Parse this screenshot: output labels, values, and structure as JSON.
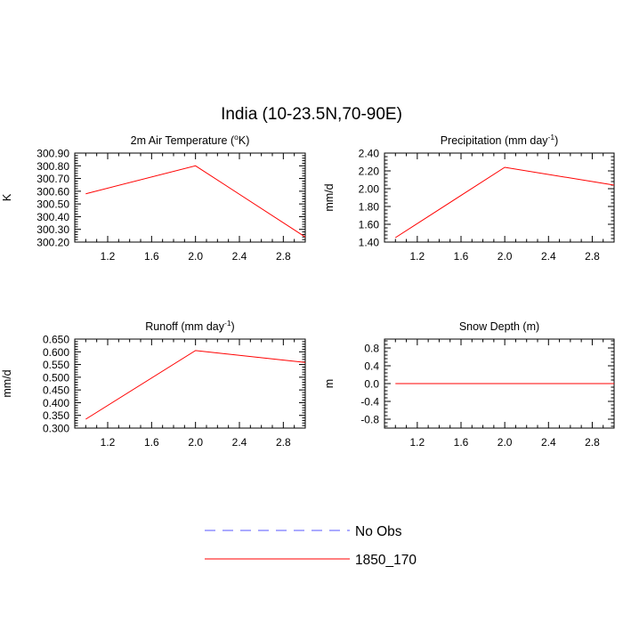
{
  "figure": {
    "title": "India (10-23.5N,70-90E)"
  },
  "legend": [
    {
      "label": "No Obs",
      "color": "#5555ff",
      "dash": true
    },
    {
      "label": "1850_170",
      "color": "#ff0000",
      "dash": false
    }
  ],
  "chart_data": [
    {
      "type": "line",
      "title": "2m Air Temperature (oK)",
      "title_main": "2m Air Temperature (",
      "title_sup": "o",
      "title_after": "K)",
      "xlabel": "",
      "ylabel": "K",
      "xlim": [
        0.9,
        3.0
      ],
      "ylim": [
        300.2,
        300.9
      ],
      "xticks": [
        1.2,
        1.6,
        2.0,
        2.4,
        2.8
      ],
      "xtick_labels": [
        "1.2",
        "1.6",
        "2.0",
        "2.4",
        "2.8"
      ],
      "yticks": [
        300.2,
        300.3,
        300.4,
        300.5,
        300.6,
        300.7,
        300.8,
        300.9
      ],
      "ytick_labels": [
        "300.20",
        "300.30",
        "300.40",
        "300.50",
        "300.60",
        "300.70",
        "300.80",
        "300.90"
      ],
      "series": [
        {
          "name": "1850_170",
          "x": [
            1,
            2,
            3
          ],
          "y": [
            300.58,
            300.8,
            300.24
          ],
          "color": "#ff0000"
        }
      ]
    },
    {
      "type": "line",
      "title": "Precipitation (mm day-1)",
      "title_main": "Precipitation (mm day",
      "title_sup": "-1",
      "title_after": ")",
      "xlabel": "",
      "ylabel": "mm/d",
      "xlim": [
        0.9,
        3.0
      ],
      "ylim": [
        1.4,
        2.4
      ],
      "xticks": [
        1.2,
        1.6,
        2.0,
        2.4,
        2.8
      ],
      "xtick_labels": [
        "1.2",
        "1.6",
        "2.0",
        "2.4",
        "2.8"
      ],
      "yticks": [
        1.4,
        1.6,
        1.8,
        2.0,
        2.2,
        2.4
      ],
      "ytick_labels": [
        "1.40",
        "1.60",
        "1.80",
        "2.00",
        "2.20",
        "2.40"
      ],
      "series": [
        {
          "name": "1850_170",
          "x": [
            1,
            2,
            3
          ],
          "y": [
            1.45,
            2.24,
            2.04
          ],
          "color": "#ff0000"
        }
      ]
    },
    {
      "type": "line",
      "title": "Runoff (mm day-1)",
      "title_main": "Runoff (mm day",
      "title_sup": "-1",
      "title_after": ")",
      "xlabel": "",
      "ylabel": "mm/d",
      "xlim": [
        0.9,
        3.0
      ],
      "ylim": [
        0.3,
        0.65
      ],
      "xticks": [
        1.2,
        1.6,
        2.0,
        2.4,
        2.8
      ],
      "xtick_labels": [
        "1.2",
        "1.6",
        "2.0",
        "2.4",
        "2.8"
      ],
      "yticks": [
        0.3,
        0.35,
        0.4,
        0.45,
        0.5,
        0.55,
        0.6,
        0.65
      ],
      "ytick_labels": [
        "0.300",
        "0.350",
        "0.400",
        "0.450",
        "0.500",
        "0.550",
        "0.600",
        "0.650"
      ],
      "series": [
        {
          "name": "1850_170",
          "x": [
            1,
            2,
            3
          ],
          "y": [
            0.335,
            0.605,
            0.558
          ],
          "color": "#ff0000"
        }
      ]
    },
    {
      "type": "line",
      "title": "Snow Depth (m)",
      "title_main": "Snow Depth (m)",
      "title_sup": "",
      "title_after": "",
      "xlabel": "",
      "ylabel": "m",
      "xlim": [
        0.9,
        3.0
      ],
      "ylim": [
        -1.0,
        1.0
      ],
      "xticks": [
        1.2,
        1.6,
        2.0,
        2.4,
        2.8
      ],
      "xtick_labels": [
        "1.2",
        "1.6",
        "2.0",
        "2.4",
        "2.8"
      ],
      "yticks": [
        -0.8,
        -0.4,
        0.0,
        0.4,
        0.8
      ],
      "ytick_labels": [
        "-0.8",
        "-0.4",
        "0.0",
        "0.4",
        "0.8"
      ],
      "series": [
        {
          "name": "1850_170",
          "x": [
            1,
            2,
            3
          ],
          "y": [
            0.0,
            0.0,
            0.0
          ],
          "color": "#ff0000"
        }
      ]
    }
  ]
}
